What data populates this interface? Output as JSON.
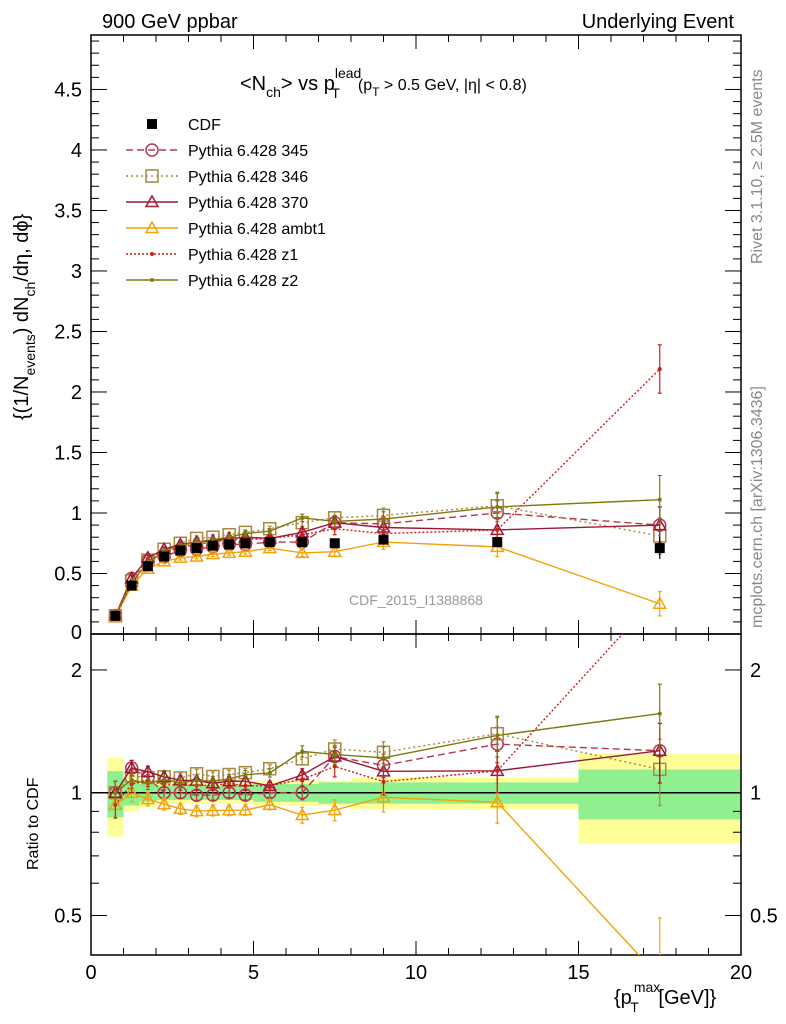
{
  "header": {
    "left": "900 GeV ppbar",
    "right": "Underlying Event"
  },
  "side_labels": {
    "rivet": "Rivet 3.1.10, ≥ 2.5M events",
    "mcplots": "mcplots.cern.ch [arXiv:1306.3436]"
  },
  "watermark": "CDF_2015_I1388868",
  "main_title": {
    "lhs": "<N",
    "lhs_sub": "ch",
    "mid": "> vs p",
    "mid_sup": "lead",
    "mid_sub": "T",
    "cut": "(p",
    "cut_sub": "T",
    "cut_rest": " > 0.5 GeV, |η| < 0.8)"
  },
  "ylabel_main": {
    "a": "{(1/N",
    "a_sub": "events",
    "b": ") dN",
    "b_sub": "ch",
    "c": "/dη, dϕ}"
  },
  "ylabel_ratio": "Ratio to CDF",
  "xlabel": {
    "a": "{p",
    "a_sup": "max",
    "a_sub": "T",
    "b": " [GeV]}"
  },
  "colors": {
    "cdf": "#000000",
    "p345": "#b5384a",
    "p346": "#a6893f",
    "p370": "#a0163a",
    "ambt1": "#f5a10a",
    "z1": "#cc1f1a",
    "z2": "#7f7a10",
    "band_inner": "#90f090",
    "band_outer": "#ffff99"
  },
  "chart_data": {
    "type": "line",
    "x_axis": {
      "range": [
        0,
        20
      ],
      "ticks": [
        0,
        5,
        10,
        15,
        20
      ],
      "tick_labels": [
        "0",
        "5",
        "10",
        "15",
        "20"
      ]
    },
    "main_y_axis": {
      "range": [
        0,
        4.95
      ],
      "ticks": [
        0.5,
        1,
        1.5,
        2,
        2.5,
        3,
        3.5,
        4,
        4.5
      ],
      "tick_labels": [
        "0.5",
        "1",
        "1.5",
        "2",
        "2.5",
        "3",
        "3.5",
        "4",
        "4.5"
      ],
      "partial_label": "0"
    },
    "ratio_y_axis": {
      "scale": "log",
      "range": [
        0.4,
        2.45
      ],
      "ticks": [
        0.5,
        1,
        2
      ],
      "tick_labels": [
        "0.5",
        "1",
        "2"
      ]
    },
    "x": [
      0.75,
      1.25,
      1.75,
      2.25,
      2.75,
      3.25,
      3.75,
      4.25,
      4.75,
      5.5,
      6.5,
      7.5,
      9.0,
      12.5,
      17.5
    ],
    "x_bin_edges": [
      0.5,
      1,
      1.5,
      2,
      2.5,
      3,
      3.5,
      4,
      4.5,
      5,
      6,
      7,
      8,
      10,
      15,
      20
    ],
    "cdf": {
      "name": "CDF",
      "values": [
        0.15,
        0.4,
        0.56,
        0.64,
        0.69,
        0.71,
        0.73,
        0.74,
        0.75,
        0.76,
        0.76,
        0.75,
        0.78,
        0.76,
        0.71
      ],
      "errors": [
        0.01,
        0.02,
        0.02,
        0.02,
        0.02,
        0.02,
        0.02,
        0.02,
        0.02,
        0.02,
        0.03,
        0.03,
        0.04,
        0.04,
        0.09
      ]
    },
    "ratio_band": {
      "inner": [
        0.13,
        0.07,
        0.05,
        0.04,
        0.04,
        0.04,
        0.04,
        0.04,
        0.04,
        0.05,
        0.05,
        0.06,
        0.06,
        0.06,
        0.14
      ],
      "outer": [
        0.22,
        0.1,
        0.08,
        0.06,
        0.06,
        0.06,
        0.06,
        0.06,
        0.06,
        0.07,
        0.07,
        0.07,
        0.09,
        0.09,
        0.25
      ]
    },
    "series": [
      {
        "name": "Pythia 6.428 345",
        "key": "p345",
        "marker": "circle",
        "dash": "7,4",
        "values": [
          0.15,
          0.46,
          0.61,
          0.64,
          0.69,
          0.7,
          0.72,
          0.74,
          0.74,
          0.76,
          0.76,
          0.92,
          0.91,
          1.0,
          0.9
        ],
        "errors": [
          0.01,
          0.02,
          0.02,
          0.02,
          0.02,
          0.02,
          0.02,
          0.02,
          0.02,
          0.02,
          0.03,
          0.05,
          0.06,
          0.1,
          0.15
        ]
      },
      {
        "name": "Pythia 6.428 346",
        "key": "p346",
        "marker": "square",
        "dash": "2,3",
        "values": [
          0.15,
          0.44,
          0.61,
          0.7,
          0.75,
          0.79,
          0.8,
          0.82,
          0.84,
          0.87,
          0.92,
          0.96,
          0.98,
          1.06,
          0.81
        ],
        "errors": [
          0.01,
          0.02,
          0.02,
          0.02,
          0.02,
          0.02,
          0.02,
          0.02,
          0.02,
          0.02,
          0.03,
          0.05,
          0.06,
          0.1,
          0.15
        ]
      },
      {
        "name": "Pythia 6.428 370",
        "key": "p370",
        "marker": "triangle",
        "dash": "",
        "values": [
          0.15,
          0.46,
          0.63,
          0.7,
          0.74,
          0.76,
          0.77,
          0.79,
          0.8,
          0.79,
          0.84,
          0.92,
          0.88,
          0.86,
          0.9
        ],
        "errors": [
          0.01,
          0.02,
          0.02,
          0.02,
          0.02,
          0.02,
          0.02,
          0.02,
          0.02,
          0.02,
          0.03,
          0.05,
          0.06,
          0.1,
          0.15
        ]
      },
      {
        "name": "Pythia 6.428 ambt1",
        "key": "ambt1",
        "marker": "triangle",
        "dash": "",
        "values": [
          0.14,
          0.4,
          0.54,
          0.6,
          0.63,
          0.64,
          0.66,
          0.67,
          0.68,
          0.71,
          0.67,
          0.68,
          0.76,
          0.72,
          0.25
        ],
        "errors": [
          0.01,
          0.02,
          0.02,
          0.02,
          0.02,
          0.02,
          0.02,
          0.02,
          0.02,
          0.02,
          0.03,
          0.04,
          0.06,
          0.08,
          0.1
        ]
      },
      {
        "name": "Pythia 6.428 z1",
        "key": "z1",
        "marker": "dot",
        "dash": "2,2",
        "values": [
          0.14,
          0.42,
          0.6,
          0.67,
          0.72,
          0.74,
          0.76,
          0.78,
          0.78,
          0.79,
          0.82,
          0.87,
          0.83,
          0.86,
          2.19
        ],
        "errors": [
          0.01,
          0.02,
          0.02,
          0.02,
          0.02,
          0.02,
          0.02,
          0.02,
          0.02,
          0.02,
          0.03,
          0.05,
          0.06,
          0.1,
          0.2
        ]
      },
      {
        "name": "Pythia 6.428 z2",
        "key": "z2",
        "marker": "dot",
        "dash": "",
        "values": [
          0.15,
          0.43,
          0.59,
          0.69,
          0.73,
          0.76,
          0.78,
          0.8,
          0.83,
          0.85,
          0.96,
          0.93,
          0.95,
          1.05,
          1.11
        ],
        "errors": [
          0.01,
          0.02,
          0.02,
          0.02,
          0.02,
          0.02,
          0.02,
          0.02,
          0.02,
          0.02,
          0.03,
          0.05,
          0.06,
          0.12,
          0.2
        ]
      }
    ]
  }
}
